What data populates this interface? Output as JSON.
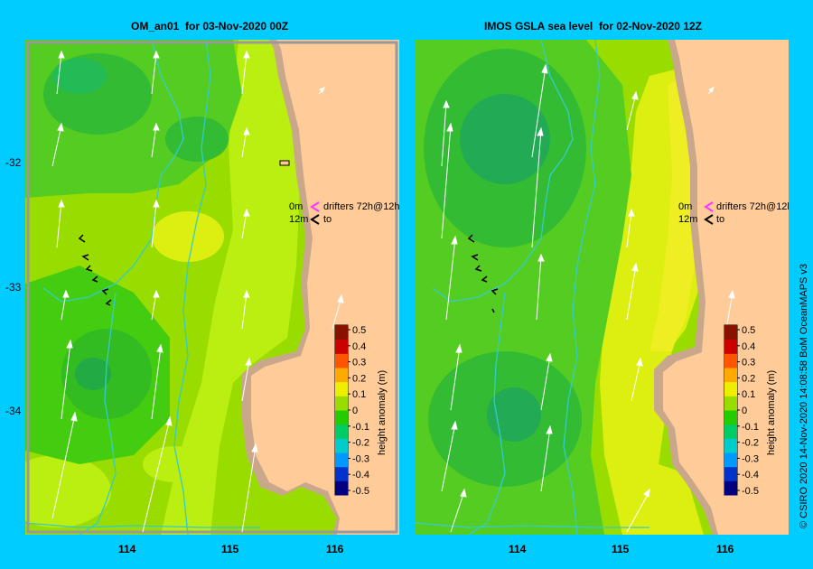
{
  "panels": [
    {
      "title": "OM_an01  for 03-Nov-2020 00Z"
    },
    {
      "title": "IMOS GSLA sea level  for 02-Nov-2020 12Z"
    }
  ],
  "y_labels": [
    "-32",
    "-33",
    "-34"
  ],
  "x_labels": [
    "114",
    "115",
    "116"
  ],
  "legend": {
    "row1_depth": "0m",
    "row1_text": "drifters 72h@12h",
    "row2_depth": "12m",
    "row2_text": "to",
    "arrow_colors": [
      "#ff33ff",
      "#000000"
    ]
  },
  "colorbar": {
    "label": "height anomaly (m)",
    "ticks": [
      "0.5",
      "0.4",
      "0.3",
      "0.2",
      "0.1",
      "0",
      "-0.1",
      "-0.2",
      "-0.3",
      "-0.4",
      "-0.5"
    ],
    "colors": [
      "#000080",
      "#0033cc",
      "#0099ff",
      "#00cccc",
      "#00cc66",
      "#22cc00",
      "#99dd00",
      "#eeee00",
      "#ffaa00",
      "#ff5500",
      "#cc0000",
      "#881100"
    ]
  },
  "colors": {
    "frame": "#00ccff",
    "land": "#ffcc99",
    "shelf": "#c9a78a",
    "isobath": "#33cccc"
  },
  "credit": "© CSIRO 2020  14-Nov-2020 14:08:58 BoM OceanMAPS v3"
}
